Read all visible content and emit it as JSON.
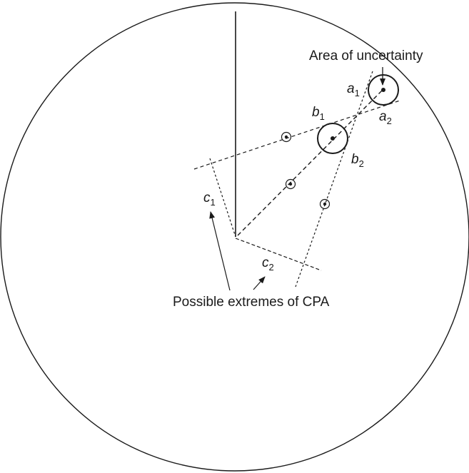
{
  "labels": {
    "area": "Area of uncertainty",
    "extremes": "Possible extremes of CPA"
  },
  "points": {
    "a": {
      "letter": "a",
      "sub1": "1",
      "sub2": "2"
    },
    "b": {
      "letter": "b",
      "sub1": "1",
      "sub2": "2"
    },
    "c": {
      "letter": "c",
      "sub1": "1",
      "sub2": "2"
    }
  },
  "colors": {
    "ink": "#1a1a1a",
    "background": "#ffffff"
  }
}
